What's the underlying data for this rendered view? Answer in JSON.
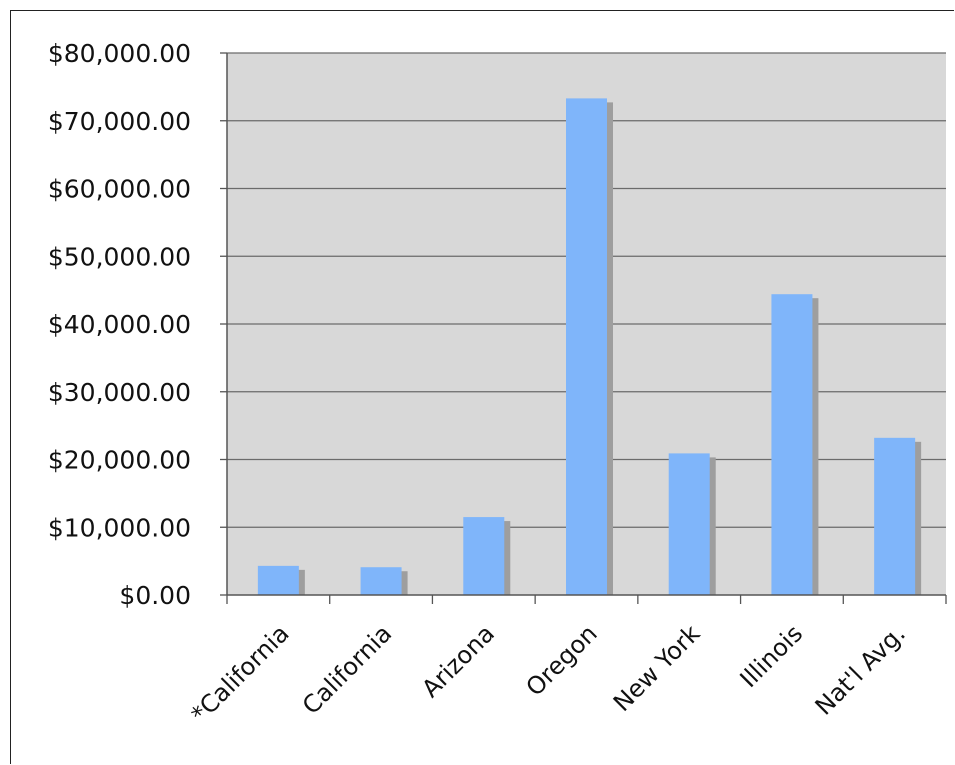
{
  "chart_data": {
    "type": "bar",
    "title": "",
    "xlabel": "",
    "ylabel": "",
    "categories": [
      "*California",
      "California",
      "Arizona",
      "Oregon",
      "New York",
      "Illinois",
      "Nat'l Avg."
    ],
    "values": [
      4300,
      4100,
      11500,
      73300,
      20900,
      44400,
      23200
    ],
    "ylim": [
      0,
      80000
    ],
    "yticks": [
      0,
      10000,
      20000,
      30000,
      40000,
      50000,
      60000,
      70000,
      80000
    ],
    "ytick_labels": [
      "$0.00",
      "$10,000.00",
      "$20,000.00",
      "$30,000.00",
      "$40,000.00",
      "$50,000.00",
      "$60,000.00",
      "$70,000.00",
      "$80,000.00"
    ],
    "grid": true,
    "legend": "none",
    "colors": {
      "bar": "#7fb5fa",
      "bar_shadow": "#9e9e9e",
      "plot_background": "#d8d8d8",
      "gridline": "#6b6b6b",
      "axis": "#555555"
    }
  }
}
